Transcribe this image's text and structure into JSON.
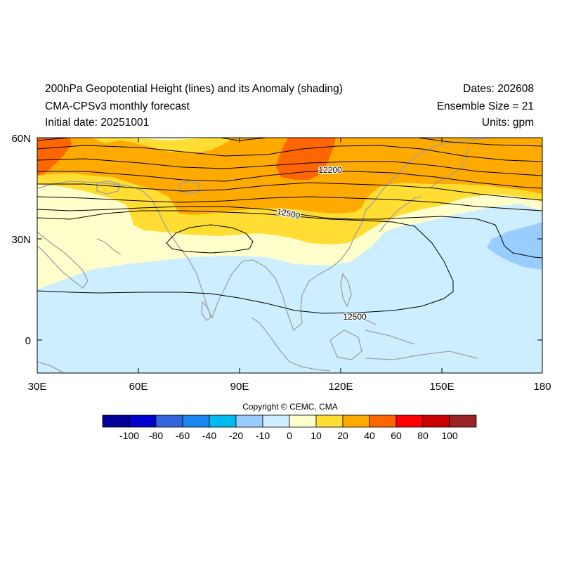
{
  "header": {
    "title": "200hPa Geopotential Height (lines) and its Anomaly (shading)",
    "model": "CMA-CPSv3 monthly forecast",
    "initial_date": "Initial date: 20251001",
    "dates": "Dates: 202608",
    "ensemble": "Ensemble Size = 21",
    "units": "Units: gpm"
  },
  "axes": {
    "lat_ticks": [
      "60N",
      "30N",
      "0"
    ],
    "lon_ticks": [
      "30E",
      "60E",
      "90E",
      "120E",
      "150E",
      "180"
    ]
  },
  "contours": {
    "labels": [
      "12200",
      "12500",
      "12500"
    ]
  },
  "colors": {
    "neg20": "#99ccff",
    "neg10": "#cceeff",
    "pos0": "#ffffcc",
    "pos10": "#ffdd33",
    "pos20": "#ffaa00",
    "pos40": "#ff6600",
    "coast": "#a0a0a0"
  },
  "colorbar": {
    "colors": [
      "#000099",
      "#0000cc",
      "#3366dd",
      "#1a88ee",
      "#00bbf0",
      "#99ccff",
      "#cceeff",
      "#ffffcc",
      "#ffdd33",
      "#ffaa00",
      "#ff6600",
      "#ff0000",
      "#cc0000",
      "#992222"
    ],
    "labels": [
      "-100",
      "-80",
      "-60",
      "-40",
      "-20",
      "-10",
      "0",
      "10",
      "20",
      "40",
      "60",
      "80",
      "100"
    ]
  },
  "copyright": "Copyright © CEMC, CMA"
}
